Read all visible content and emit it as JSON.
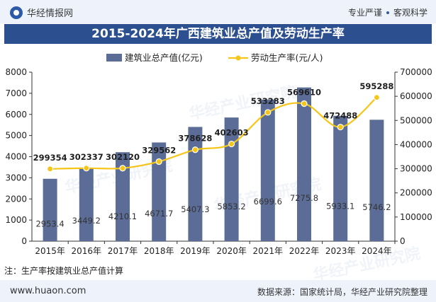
{
  "header": {
    "site_name": "华经情报网",
    "tag1": "专业严谨",
    "tag2": "客观科学"
  },
  "title": "2015-2024年广西建筑业总产值及劳动生产率",
  "watermark": "华经产业研究院",
  "note": "注：生产率按建筑业总产值计算",
  "footer": {
    "url": "www.huaon.com",
    "source": "数据来源：国家统计局，华经产业研究院整理"
  },
  "colors": {
    "bar": "#5b6d96",
    "line": "#f5c518",
    "title_bg": "#2c4f8f"
  },
  "chart_data": {
    "type": "bar+line",
    "categories": [
      "2015年",
      "2016年",
      "2017年",
      "2018年",
      "2019年",
      "2020年",
      "2021年",
      "2022年",
      "2023年",
      "2024年"
    ],
    "series": [
      {
        "name": "建筑业总产值(亿元)",
        "type": "bar",
        "axis": "left",
        "values": [
          2953.4,
          3449.2,
          4210.1,
          4671.7,
          5407.3,
          5853.2,
          6699.6,
          7275.8,
          5933.1,
          5746.2
        ]
      },
      {
        "name": "劳动生产率(元/人)",
        "type": "line",
        "axis": "right",
        "values": [
          299354,
          302337,
          302120,
          329562,
          378628,
          402603,
          533283,
          569610,
          472488,
          595288
        ]
      }
    ],
    "left_axis": {
      "min": 0,
      "max": 8000,
      "ticks": [
        0,
        1000,
        2000,
        3000,
        4000,
        5000,
        6000,
        7000,
        8000
      ]
    },
    "right_axis": {
      "min": 0,
      "max": 700000,
      "ticks": [
        0,
        100000,
        200000,
        300000,
        400000,
        500000,
        600000,
        700000
      ]
    },
    "legend_position": "top"
  }
}
